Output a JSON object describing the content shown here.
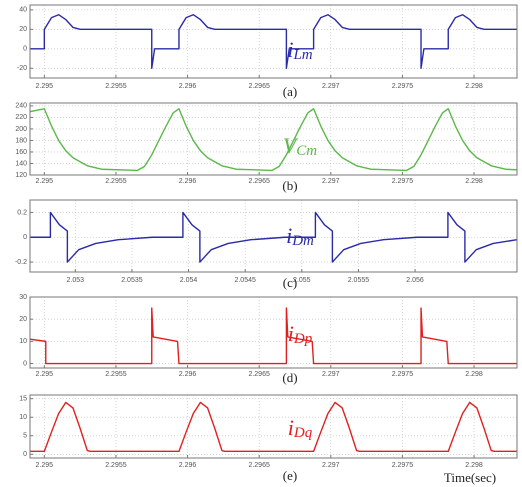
{
  "chart_data": [
    {
      "type": "line",
      "caption": "(a)",
      "annotation": "iLm",
      "grid": true,
      "x": [
        2.2949,
        2.295,
        2.295,
        2.29505,
        2.2951,
        2.29515,
        2.2952,
        2.29525,
        2.29575,
        2.29575,
        2.29577,
        2.29594,
        2.29594,
        2.29599,
        2.29604,
        2.29609,
        2.29614,
        2.29619,
        2.29669,
        2.29669,
        2.29671,
        2.29688,
        2.29688,
        2.29693,
        2.29698,
        2.29703,
        2.29708,
        2.29713,
        2.29763,
        2.29763,
        2.29765,
        2.29782,
        2.29782,
        2.29787,
        2.29792,
        2.29797,
        2.29802,
        2.29807,
        2.2983
      ],
      "series": [
        {
          "color": "#2b2ba8",
          "values": [
            0,
            0,
            20,
            32,
            35,
            30,
            22,
            20,
            20,
            -20,
            0,
            0,
            20,
            32,
            35,
            30,
            22,
            20,
            20,
            -20,
            0,
            0,
            20,
            32,
            35,
            30,
            22,
            20,
            20,
            -20,
            0,
            0,
            20,
            32,
            35,
            30,
            22,
            20,
            20
          ]
        }
      ],
      "xlim": [
        2.2949,
        2.2983
      ],
      "xticks": [
        2.295,
        2.2955,
        2.296,
        2.2965,
        2.297,
        2.2975,
        2.298
      ],
      "ylim": [
        -30,
        45
      ],
      "yticks": [
        -20,
        0,
        20,
        40
      ]
    },
    {
      "type": "line",
      "caption": "(b)",
      "annotation": "VCm",
      "grid": true,
      "x": [
        2.2949,
        2.295,
        2.29505,
        2.2951,
        2.29515,
        2.2952,
        2.2953,
        2.2954,
        2.29565,
        2.2957,
        2.29575,
        2.2958,
        2.29585,
        2.2959,
        2.29594,
        2.29599,
        2.29604,
        2.29609,
        2.29614,
        2.29624,
        2.29634,
        2.29659,
        2.29664,
        2.29669,
        2.29674,
        2.29679,
        2.29684,
        2.29688,
        2.29693,
        2.29698,
        2.29703,
        2.29708,
        2.29718,
        2.29728,
        2.29753,
        2.29758,
        2.29763,
        2.29768,
        2.29773,
        2.29778,
        2.29782,
        2.29787,
        2.29792,
        2.29797,
        2.29802,
        2.29812,
        2.29822,
        2.2983
      ],
      "series": [
        {
          "color": "#5cb84a",
          "values": [
            230,
            235,
            205,
            180,
            162,
            150,
            136,
            130,
            128,
            135,
            155,
            180,
            205,
            228,
            235,
            205,
            180,
            162,
            150,
            136,
            130,
            128,
            135,
            155,
            180,
            205,
            228,
            235,
            205,
            180,
            162,
            150,
            136,
            130,
            128,
            135,
            155,
            180,
            205,
            228,
            235,
            205,
            180,
            162,
            150,
            136,
            130,
            129
          ]
        }
      ],
      "xlim": [
        2.2949,
        2.2983
      ],
      "xticks": [
        2.295,
        2.2955,
        2.296,
        2.2965,
        2.297,
        2.2975,
        2.298
      ],
      "ylim": [
        120,
        245
      ],
      "yticks": [
        120,
        140,
        160,
        180,
        200,
        220,
        240
      ]
    },
    {
      "type": "line",
      "caption": "(c)",
      "annotation": "iDm",
      "grid": true,
      "x": [
        2.0526,
        2.05278,
        2.05278,
        2.05286,
        2.05293,
        2.05293,
        2.05303,
        2.05318,
        2.05338,
        2.05368,
        2.05395,
        2.05395,
        2.05403,
        2.0541,
        2.0541,
        2.0542,
        2.05435,
        2.05455,
        2.05485,
        2.05512,
        2.05512,
        2.0552,
        2.05527,
        2.05527,
        2.05537,
        2.05552,
        2.05572,
        2.05602,
        2.05629,
        2.05629,
        2.05637,
        2.05644,
        2.05644,
        2.05654,
        2.05669,
        2.0569
      ],
      "series": [
        {
          "color": "#2b2ba8",
          "values": [
            0,
            0,
            0.2,
            0.1,
            0.05,
            -0.2,
            -0.1,
            -0.05,
            -0.02,
            0,
            0,
            0.2,
            0.1,
            0.05,
            -0.2,
            -0.1,
            -0.05,
            -0.02,
            0,
            0,
            0.2,
            0.1,
            0.05,
            -0.2,
            -0.1,
            -0.05,
            -0.02,
            0,
            0,
            0.2,
            0.1,
            0.05,
            -0.2,
            -0.1,
            -0.05,
            -0.02
          ]
        }
      ],
      "xlim": [
        2.0526,
        2.0569
      ],
      "xticks": [
        2.053,
        2.0535,
        2.054,
        2.0545,
        2.055,
        2.0555,
        2.056
      ],
      "ylim": [
        -0.28,
        0.3
      ],
      "yticks": [
        -0.2,
        0,
        0.2
      ]
    },
    {
      "type": "line",
      "caption": "(d)",
      "annotation": "iDp",
      "grid": true,
      "x": [
        2.2949,
        2.29501,
        2.29501,
        2.29575,
        2.29575,
        2.29576,
        2.29593,
        2.29594,
        2.29669,
        2.29669,
        2.2967,
        2.29687,
        2.29688,
        2.29763,
        2.29763,
        2.29764,
        2.29781,
        2.29782,
        2.2983
      ],
      "series": [
        {
          "color": "#e02020",
          "values": [
            11,
            10,
            0,
            0,
            25,
            12,
            10,
            0,
            0,
            25,
            12,
            10,
            0,
            0,
            25,
            12,
            10,
            0,
            0
          ]
        }
      ],
      "xlim": [
        2.2949,
        2.2983
      ],
      "xticks": [
        2.295,
        2.2955,
        2.296,
        2.2965,
        2.297,
        2.2975,
        2.298
      ],
      "ylim": [
        -2,
        30
      ],
      "yticks": [
        0,
        10,
        20,
        30
      ]
    },
    {
      "type": "line",
      "caption": "(e)",
      "annotation": "iDq",
      "xlabel": "Time(sec)",
      "grid": true,
      "x": [
        2.2949,
        2.295,
        2.29505,
        2.2951,
        2.29515,
        2.2952,
        2.29525,
        2.2953,
        2.29532,
        2.29594,
        2.29599,
        2.29604,
        2.29609,
        2.29614,
        2.29619,
        2.29624,
        2.29626,
        2.29688,
        2.29693,
        2.29698,
        2.29703,
        2.29708,
        2.29713,
        2.29718,
        2.2972,
        2.29782,
        2.29787,
        2.29792,
        2.29797,
        2.29802,
        2.29807,
        2.29812,
        2.29814,
        2.2983
      ],
      "series": [
        {
          "color": "#e02020",
          "values": [
            0.8,
            0.8,
            6,
            11,
            14,
            12.5,
            7,
            1,
            0.8,
            0.8,
            6,
            11,
            14,
            12.5,
            7,
            1,
            0.8,
            0.8,
            6,
            11,
            14,
            12.5,
            7,
            1,
            0.8,
            0.8,
            6,
            11,
            14,
            12.5,
            7,
            1,
            0.8,
            0.8
          ]
        }
      ],
      "xlim": [
        2.2949,
        2.2983
      ],
      "xticks": [
        2.295,
        2.2955,
        2.296,
        2.2965,
        2.297,
        2.2975,
        2.298
      ],
      "ylim": [
        -1,
        16
      ],
      "yticks": [
        0,
        5,
        10,
        15
      ]
    }
  ]
}
